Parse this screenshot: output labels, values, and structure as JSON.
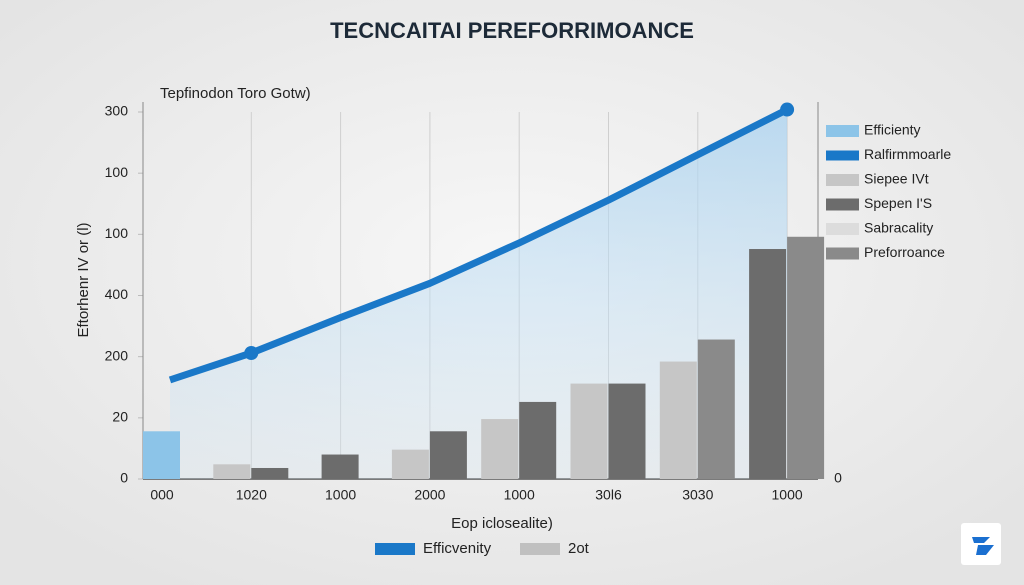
{
  "chart_data": {
    "type": "bar",
    "title": "TECNCAITAI PEREFORRIMOANCE",
    "subtitle": "Tepfinodon Toro Gotw)",
    "y_label": "Eftorhenr IV or (l)",
    "x_label": "Eop iclosealite)",
    "categories": [
      "000",
      "1020",
      "1000",
      "2000",
      "1000",
      "30l6",
      "3030",
      "1000"
    ],
    "ylim": [
      0,
      300
    ],
    "yticks": [
      0,
      {
        "value": 50,
        "label": "20"
      },
      {
        "value": 100,
        "label": "200"
      },
      {
        "value": 150,
        "label": "400"
      },
      {
        "value": 200,
        "label": "100"
      },
      {
        "value": 250,
        "label": "100"
      },
      300
    ],
    "y2lim": [
      0,
      300
    ],
    "y2ticks": [
      0
    ],
    "grid": true,
    "legend": "right",
    "series": [
      {
        "name": "Efficienty",
        "type": "bar",
        "color": "#8cc4e8",
        "values": [
          39,
          null,
          null,
          null,
          null,
          null,
          null,
          null
        ]
      },
      {
        "name": "Ralfirmmoarle",
        "type": "line",
        "color": "#1a78c8",
        "values": [
          81,
          103,
          132,
          160,
          193,
          228,
          265,
          302
        ]
      },
      {
        "name": "Siepee IVt",
        "type": "bar",
        "color": "#c6c6c6",
        "values": [
          null,
          12,
          null,
          24,
          49,
          78,
          96,
          null
        ]
      },
      {
        "name": "Spepen I'S",
        "type": "bar",
        "color": "#6c6c6c",
        "values": [
          null,
          9,
          20,
          39,
          63,
          78,
          null,
          188
        ]
      },
      {
        "name": "Sabracality",
        "type": "bar",
        "color": "#dcdcdc",
        "values": [
          null,
          null,
          null,
          null,
          null,
          null,
          null,
          null
        ]
      },
      {
        "name": "Preforroance",
        "type": "bar",
        "color": "#8a8a8a",
        "values": [
          null,
          null,
          null,
          null,
          null,
          null,
          114,
          198
        ]
      }
    ],
    "bottom_legend": [
      {
        "label": "Efficvenity",
        "color": "#1a78c8"
      },
      {
        "label": "2ot",
        "color": "#c0c0c0"
      }
    ]
  }
}
